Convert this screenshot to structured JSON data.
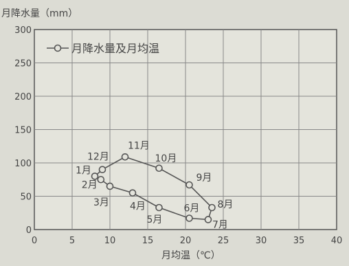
{
  "chart_data": {
    "type": "scatter",
    "ylabel": "月降水量（mm）",
    "xlabel": "月均温（℃）",
    "xlim": [
      0,
      40
    ],
    "ylim": [
      0,
      300
    ],
    "xticks": [
      0,
      5,
      10,
      15,
      20,
      25,
      30,
      35,
      40
    ],
    "yticks": [
      0,
      50,
      100,
      150,
      200,
      250,
      300
    ],
    "grid": true,
    "legend": {
      "label": "月降水量及月均温",
      "position": "top-left"
    },
    "connected": true,
    "series": [
      {
        "points": [
          {
            "label": "1月",
            "x": 8,
            "y": 80
          },
          {
            "label": "2月",
            "x": 8.8,
            "y": 75
          },
          {
            "label": "3月",
            "x": 10,
            "y": 65
          },
          {
            "label": "4月",
            "x": 13,
            "y": 55
          },
          {
            "label": "5月",
            "x": 16.5,
            "y": 33
          },
          {
            "label": "6月",
            "x": 20.5,
            "y": 17
          },
          {
            "label": "7月",
            "x": 23,
            "y": 15
          },
          {
            "label": "8月",
            "x": 23.5,
            "y": 33
          },
          {
            "label": "9月",
            "x": 20.5,
            "y": 67
          },
          {
            "label": "10月",
            "x": 16.5,
            "y": 92
          },
          {
            "label": "11月",
            "x": 12,
            "y": 109
          },
          {
            "label": "12月",
            "x": 9,
            "y": 90
          }
        ]
      }
    ]
  }
}
